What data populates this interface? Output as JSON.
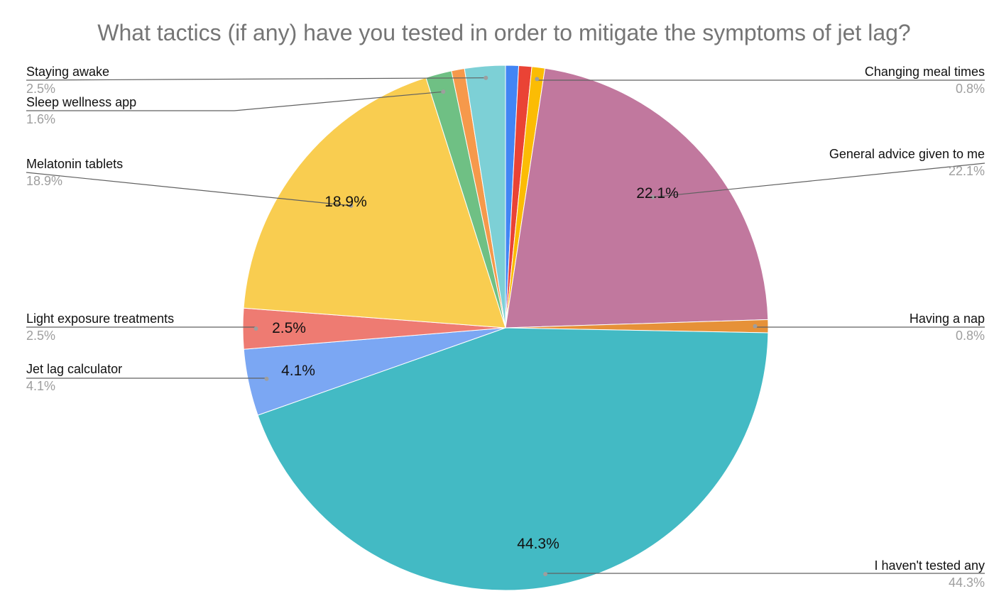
{
  "chart_data": {
    "type": "pie",
    "title": "What tactics (if any) have you tested in order to mitigate the symptoms of jet lag?",
    "start_angle_deg": 0,
    "direction": "clockwise",
    "slices": [
      {
        "label": "Extra 1",
        "value": 0.8,
        "color": "#4285f4",
        "show_inner": false,
        "callout": false
      },
      {
        "label": "Extra 2",
        "value": 0.8,
        "color": "#ea4335",
        "show_inner": false,
        "callout": false
      },
      {
        "label": "Changing meal times",
        "value": 0.8,
        "color": "#fbbc04",
        "show_inner": false,
        "callout": true,
        "callout_side": "right"
      },
      {
        "label": "General advice given to me",
        "value": 22.1,
        "color": "#c1789e",
        "show_inner": true,
        "callout": true,
        "callout_side": "right"
      },
      {
        "label": "Having a nap",
        "value": 0.8,
        "color": "#e69138",
        "show_inner": false,
        "callout": true,
        "callout_side": "right"
      },
      {
        "label": "I haven't tested any",
        "value": 44.3,
        "color": "#43bac4",
        "show_inner": true,
        "callout": true,
        "callout_side": "right"
      },
      {
        "label": "Jet lag calculator",
        "value": 4.1,
        "color": "#7ba7f3",
        "show_inner": true,
        "callout": true,
        "callout_side": "left"
      },
      {
        "label": "Light exposure treatments",
        "value": 2.5,
        "color": "#ee7b72",
        "show_inner": true,
        "callout": true,
        "callout_side": "left"
      },
      {
        "label": "Melatonin tablets",
        "value": 18.9,
        "color": "#f9cd50",
        "show_inner": true,
        "callout": true,
        "callout_side": "left"
      },
      {
        "label": "Sleep wellness app",
        "value": 1.6,
        "color": "#6fc084",
        "show_inner": false,
        "callout": true,
        "callout_side": "left"
      },
      {
        "label": "Extra 3",
        "value": 0.8,
        "color": "#f6994b",
        "show_inner": false,
        "callout": false
      },
      {
        "label": "Staying awake",
        "value": 2.5,
        "color": "#7dd0d6",
        "show_inner": false,
        "callout": true,
        "callout_side": "left"
      }
    ],
    "legend": "none"
  },
  "callouts": [
    {
      "name": "Staying awake",
      "pct": "2.5%"
    },
    {
      "name": "Sleep wellness app",
      "pct": "1.6%"
    },
    {
      "name": "Melatonin tablets",
      "pct": "18.9%"
    },
    {
      "name": "Light exposure treatments",
      "pct": "2.5%"
    },
    {
      "name": "Jet lag calculator",
      "pct": "4.1%"
    },
    {
      "name": "Changing meal times",
      "pct": "0.8%"
    },
    {
      "name": "General advice given to me",
      "pct": "22.1%"
    },
    {
      "name": "Having a nap",
      "pct": "0.8%"
    },
    {
      "name": "I haven't tested any",
      "pct": "44.3%"
    }
  ],
  "inner_labels": [
    {
      "text": "22.1%"
    },
    {
      "text": "18.9%"
    },
    {
      "text": "2.5%"
    },
    {
      "text": "4.1%"
    },
    {
      "text": "44.3%"
    }
  ]
}
